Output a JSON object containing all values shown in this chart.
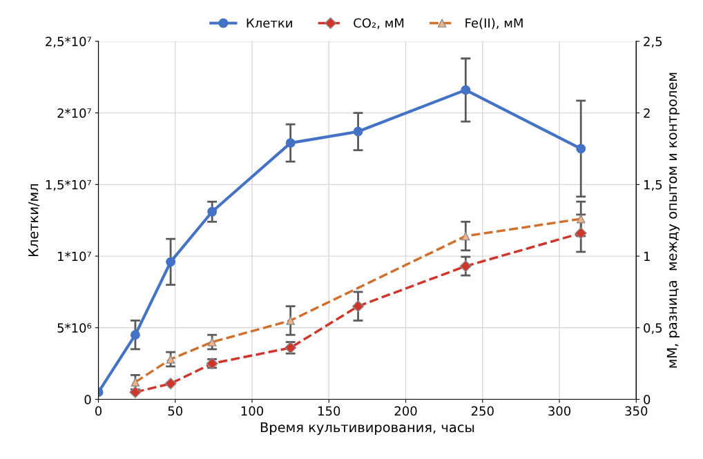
{
  "chart_data": {
    "type": "line",
    "xlabel": "Время культивирования, часы",
    "ylabel": "Клетки/мл",
    "y2label": "мМ, разница  между опытом и контролем",
    "xlim": [
      0,
      350
    ],
    "xticks": [
      0,
      50,
      100,
      150,
      200,
      250,
      300,
      350
    ],
    "ylim": [
      0,
      25000000
    ],
    "yticks": [
      {
        "value": 0,
        "label": "0"
      },
      {
        "value": 5000000,
        "label": "5*10⁶"
      },
      {
        "value": 10000000,
        "label": "1*10⁷"
      },
      {
        "value": 15000000,
        "label": "1,5*10⁷"
      },
      {
        "value": 20000000,
        "label": "2*10⁷"
      },
      {
        "value": 25000000,
        "label": "2,5*10⁷"
      }
    ],
    "y2lim": [
      0,
      2.5
    ],
    "y2ticks": [
      0,
      {
        "value": 0.5,
        "label": "0,5"
      },
      1,
      {
        "value": 1.5,
        "label": "1,5"
      },
      2,
      {
        "value": 2.5,
        "label": "2,5"
      }
    ],
    "grid": true,
    "legend": "top",
    "series": [
      {
        "name": "Клетки",
        "color": "#4472c4",
        "marker": "circle",
        "line_style": "solid",
        "x": [
          0,
          24,
          47,
          74,
          125,
          169,
          239,
          314
        ],
        "values": [
          500000,
          4500000,
          9600000,
          13100000,
          17900000,
          18700000,
          21600000,
          17500000
        ],
        "errors": [
          null,
          1000000,
          1600000,
          700000,
          1300000,
          1300000,
          2200000,
          3350000
        ]
      },
      {
        "name": "CO₂, мМ",
        "color": "#d0352b",
        "marker": "diamond",
        "line_style": "dashed",
        "axis": "y2",
        "x": [
          24,
          47,
          74,
          125,
          169,
          239,
          314
        ],
        "values": [
          0.05,
          0.11,
          0.25,
          0.36,
          0.65,
          0.93,
          1.16
        ],
        "errors": [
          null,
          null,
          0.03,
          0.04,
          0.1,
          0.065,
          0.13
        ]
      },
      {
        "name": "Fe(II), мМ",
        "color": "#d0702c",
        "marker": "triangle",
        "line_style": "dashed",
        "axis": "y2",
        "x": [
          24,
          47,
          74,
          125,
          239,
          314
        ],
        "values": [
          0.12,
          0.28,
          0.4,
          0.55,
          1.14,
          1.26
        ],
        "errors": [
          0.05,
          0.05,
          0.05,
          0.1,
          0.1,
          0.12
        ]
      }
    ]
  }
}
